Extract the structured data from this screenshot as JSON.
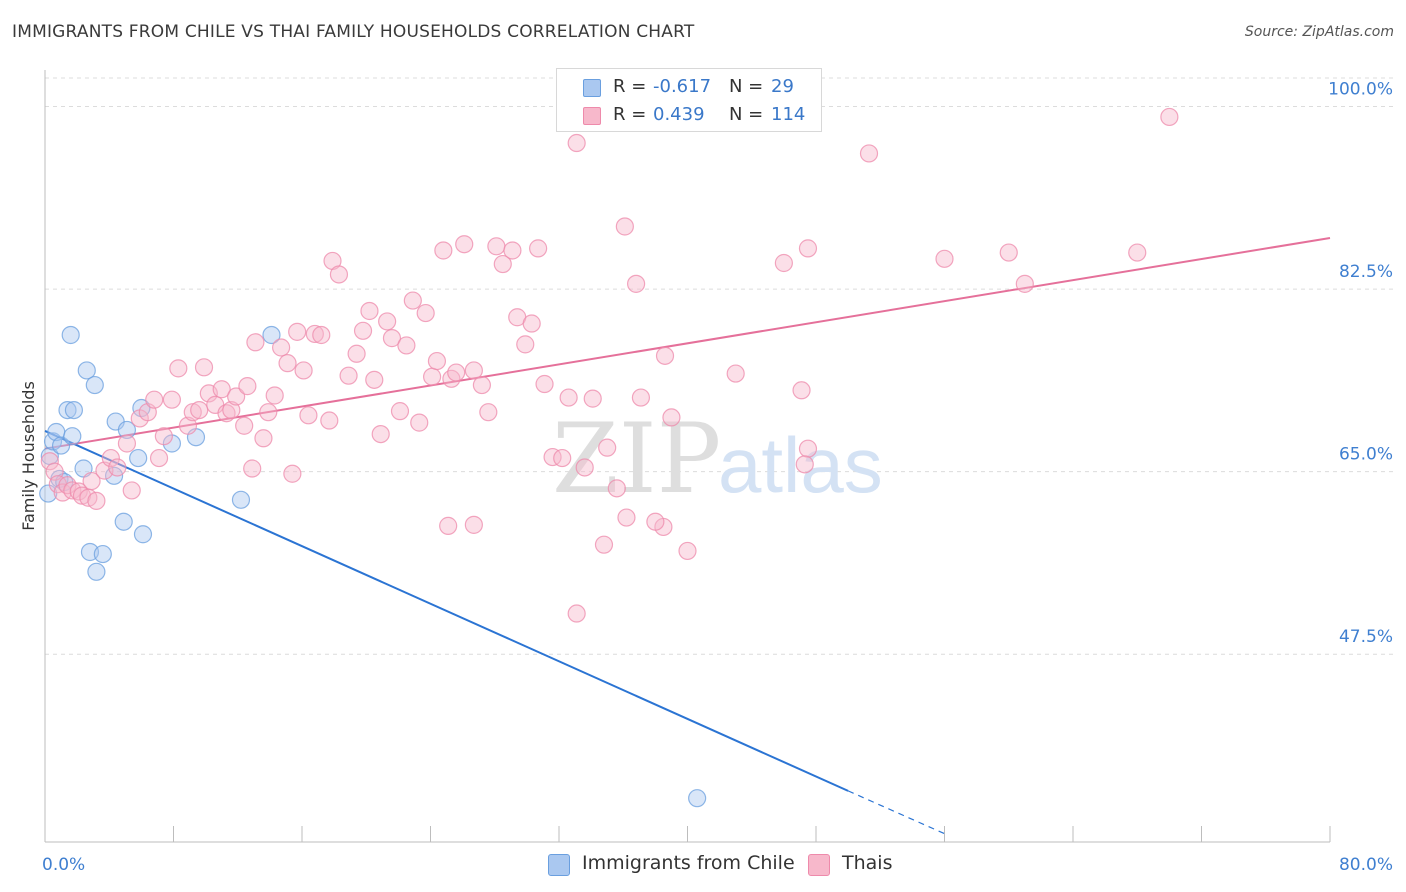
{
  "title": "IMMIGRANTS FROM CHILE VS THAI FAMILY HOUSEHOLDS CORRELATION CHART",
  "source": "Source: ZipAtlas.com",
  "watermark": {
    "zip": "ZIP",
    "atlas": "atlas"
  },
  "legend": {
    "r_label": "R =",
    "n_label": "N =",
    "series": [
      {
        "r": "-0.617",
        "n": "29",
        "color": "#aac8f0"
      },
      {
        "r": "0.439",
        "n": "114",
        "color": "#f7b8cb"
      }
    ]
  },
  "bottom_legend": [
    {
      "label": "Immigrants from Chile",
      "color": "#aac8f0"
    },
    {
      "label": "Thais",
      "color": "#f7b8cb"
    }
  ],
  "chart_data": {
    "type": "scatter",
    "title": "IMMIGRANTS FROM CHILE VS THAI FAMILY HOUSEHOLDS CORRELATION CHART",
    "xlabel": "",
    "ylabel": "Family Households",
    "xlim": [
      0,
      80
    ],
    "ylim": [
      29.5,
      103.5
    ],
    "x_tick_labels": [
      "0.0%",
      "80.0%"
    ],
    "y_ticks": [
      47.5,
      65.0,
      82.5,
      100.0
    ],
    "y_tick_labels": [
      "47.5%",
      "65.0%",
      "82.5%",
      "100.0%"
    ],
    "grid": true,
    "series": [
      {
        "name": "Immigrants from Chile",
        "color": "#6a9fdf",
        "fill": "#aac8f0",
        "line_color": "#2b74d3",
        "trend": {
          "x0": 0,
          "y0": 68.9,
          "x1": 50,
          "y1": 34.4,
          "dash_x1": 56,
          "dash_y1": 30.3
        },
        "points": [
          [
            0.3,
            66.5
          ],
          [
            0.5,
            67.9
          ],
          [
            0.7,
            68.8
          ],
          [
            0.9,
            64.3
          ],
          [
            1.0,
            67.5
          ],
          [
            1.4,
            70.9
          ],
          [
            1.7,
            68.4
          ],
          [
            1.8,
            70.9
          ],
          [
            1.6,
            78.1
          ],
          [
            2.6,
            74.7
          ],
          [
            3.1,
            73.3
          ],
          [
            2.4,
            65.3
          ],
          [
            4.4,
            69.8
          ],
          [
            4.3,
            64.6
          ],
          [
            5.1,
            69.0
          ],
          [
            6.0,
            71.1
          ],
          [
            5.8,
            66.3
          ],
          [
            7.9,
            67.7
          ],
          [
            9.4,
            68.3
          ],
          [
            12.2,
            62.3
          ],
          [
            14.1,
            78.1
          ],
          [
            4.9,
            60.2
          ],
          [
            6.1,
            59.0
          ],
          [
            2.8,
            57.3
          ],
          [
            3.6,
            57.1
          ],
          [
            3.2,
            55.4
          ],
          [
            40.6,
            33.7
          ],
          [
            0.2,
            62.9
          ],
          [
            1.2,
            64.0
          ]
        ]
      },
      {
        "name": "Thais",
        "color": "#ee8aab",
        "fill": "#f7b8cb",
        "line_color": "#e5709a",
        "trend": {
          "x0": 0,
          "y0": 67.2,
          "x1": 80,
          "y1": 87.4
        },
        "points": [
          [
            0.3,
            66.0
          ],
          [
            0.6,
            65.0
          ],
          [
            0.8,
            63.8
          ],
          [
            1.1,
            63.0
          ],
          [
            1.4,
            63.7
          ],
          [
            1.7,
            63.2
          ],
          [
            2.1,
            63.1
          ],
          [
            2.3,
            62.7
          ],
          [
            2.7,
            62.5
          ],
          [
            2.9,
            64.1
          ],
          [
            3.2,
            62.2
          ],
          [
            3.7,
            65.1
          ],
          [
            4.1,
            66.3
          ],
          [
            4.5,
            65.4
          ],
          [
            5.1,
            67.7
          ],
          [
            5.4,
            63.2
          ],
          [
            5.9,
            70.1
          ],
          [
            6.4,
            70.7
          ],
          [
            6.8,
            71.9
          ],
          [
            7.1,
            66.3
          ],
          [
            7.4,
            68.4
          ],
          [
            7.9,
            71.9
          ],
          [
            8.3,
            74.9
          ],
          [
            8.9,
            69.4
          ],
          [
            9.2,
            70.7
          ],
          [
            9.6,
            70.9
          ],
          [
            9.9,
            75.0
          ],
          [
            10.2,
            72.5
          ],
          [
            10.6,
            71.4
          ],
          [
            11.0,
            72.9
          ],
          [
            11.3,
            70.6
          ],
          [
            11.6,
            70.9
          ],
          [
            11.9,
            72.2
          ],
          [
            12.4,
            69.4
          ],
          [
            12.6,
            73.2
          ],
          [
            12.9,
            65.3
          ],
          [
            13.1,
            77.4
          ],
          [
            13.6,
            68.2
          ],
          [
            13.9,
            70.7
          ],
          [
            14.3,
            72.3
          ],
          [
            14.7,
            76.9
          ],
          [
            15.1,
            75.4
          ],
          [
            15.4,
            64.8
          ],
          [
            15.7,
            78.4
          ],
          [
            16.1,
            74.7
          ],
          [
            16.4,
            70.4
          ],
          [
            16.8,
            78.2
          ],
          [
            17.2,
            78.1
          ],
          [
            17.7,
            69.9
          ],
          [
            17.9,
            85.2
          ],
          [
            18.3,
            83.9
          ],
          [
            18.9,
            74.2
          ],
          [
            19.4,
            76.3
          ],
          [
            19.8,
            78.5
          ],
          [
            20.2,
            80.4
          ],
          [
            20.5,
            73.8
          ],
          [
            20.9,
            68.6
          ],
          [
            21.3,
            79.4
          ],
          [
            21.6,
            77.8
          ],
          [
            22.1,
            70.8
          ],
          [
            22.5,
            77.1
          ],
          [
            22.9,
            81.4
          ],
          [
            23.3,
            69.7
          ],
          [
            23.7,
            80.2
          ],
          [
            24.1,
            74.1
          ],
          [
            24.4,
            75.6
          ],
          [
            24.8,
            86.2
          ],
          [
            25.3,
            73.9
          ],
          [
            25.6,
            74.5
          ],
          [
            26.1,
            86.8
          ],
          [
            26.7,
            74.7
          ],
          [
            27.2,
            73.3
          ],
          [
            27.6,
            70.7
          ],
          [
            28.1,
            86.6
          ],
          [
            28.5,
            84.9
          ],
          [
            29.1,
            86.2
          ],
          [
            29.4,
            79.8
          ],
          [
            29.9,
            77.2
          ],
          [
            30.3,
            79.2
          ],
          [
            30.7,
            86.4
          ],
          [
            31.1,
            73.4
          ],
          [
            31.6,
            66.4
          ],
          [
            32.2,
            66.3
          ],
          [
            32.6,
            72.1
          ],
          [
            33.1,
            96.5
          ],
          [
            33.6,
            65.4
          ],
          [
            34.1,
            72.0
          ],
          [
            35.0,
            67.3
          ],
          [
            35.6,
            63.4
          ],
          [
            36.1,
            88.5
          ],
          [
            36.8,
            83.0
          ],
          [
            37.1,
            72.1
          ],
          [
            38.6,
            76.1
          ],
          [
            39.0,
            70.2
          ],
          [
            40.0,
            57.4
          ],
          [
            46.0,
            85.0
          ],
          [
            47.5,
            86.4
          ],
          [
            56.0,
            85.4
          ],
          [
            60.0,
            86.0
          ],
          [
            61.0,
            83.0
          ],
          [
            68.0,
            86.0
          ],
          [
            70.0,
            99.0
          ],
          [
            43.0,
            74.4
          ],
          [
            47.1,
            72.8
          ],
          [
            47.5,
            67.2
          ],
          [
            47.3,
            65.7
          ],
          [
            38.5,
            59.7
          ],
          [
            38.0,
            60.2
          ],
          [
            36.2,
            60.6
          ],
          [
            33.1,
            51.4
          ],
          [
            34.8,
            58.0
          ],
          [
            25.1,
            59.8
          ],
          [
            26.7,
            59.9
          ],
          [
            51.3,
            95.5
          ]
        ]
      }
    ]
  }
}
